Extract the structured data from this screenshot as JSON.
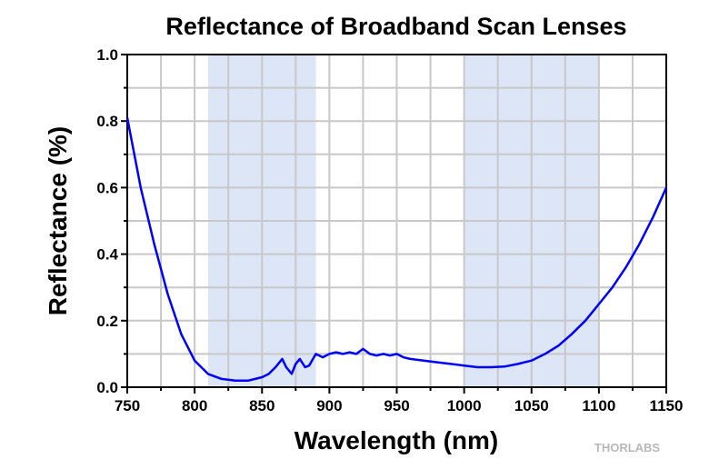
{
  "chart_data": {
    "type": "line",
    "title": "Reflectance of Broadband Scan Lenses",
    "xlabel": "Wavelength (nm)",
    "ylabel": "Reflectance (%)",
    "xlim": [
      750,
      1150
    ],
    "ylim": [
      0,
      1.0
    ],
    "xticks": [
      750,
      800,
      850,
      900,
      950,
      1000,
      1050,
      1100,
      1150
    ],
    "yticks": [
      "0.0",
      "0.2",
      "0.4",
      "0.6",
      "0.8",
      "1.0"
    ],
    "grid": true,
    "shaded_bands": [
      [
        810,
        890
      ],
      [
        1000,
        1100
      ]
    ],
    "series": [
      {
        "name": "Reflectance",
        "color": "#0000ff",
        "x": [
          750,
          760,
          770,
          780,
          790,
          800,
          810,
          820,
          830,
          840,
          845,
          850,
          855,
          860,
          865,
          868,
          872,
          875,
          878,
          882,
          885,
          890,
          895,
          900,
          905,
          910,
          915,
          920,
          925,
          930,
          935,
          940,
          945,
          950,
          955,
          960,
          970,
          980,
          990,
          1000,
          1010,
          1020,
          1030,
          1040,
          1050,
          1060,
          1070,
          1080,
          1090,
          1100,
          1110,
          1120,
          1130,
          1140,
          1150
        ],
        "y": [
          0.81,
          0.6,
          0.43,
          0.28,
          0.16,
          0.08,
          0.04,
          0.025,
          0.02,
          0.02,
          0.025,
          0.03,
          0.04,
          0.06,
          0.085,
          0.06,
          0.04,
          0.07,
          0.085,
          0.06,
          0.065,
          0.1,
          0.09,
          0.1,
          0.105,
          0.1,
          0.105,
          0.1,
          0.115,
          0.1,
          0.095,
          0.1,
          0.095,
          0.1,
          0.09,
          0.085,
          0.08,
          0.075,
          0.07,
          0.065,
          0.06,
          0.06,
          0.062,
          0.07,
          0.08,
          0.1,
          0.125,
          0.16,
          0.2,
          0.25,
          0.3,
          0.36,
          0.43,
          0.51,
          0.6
        ]
      }
    ]
  },
  "watermark": "THORLABS"
}
